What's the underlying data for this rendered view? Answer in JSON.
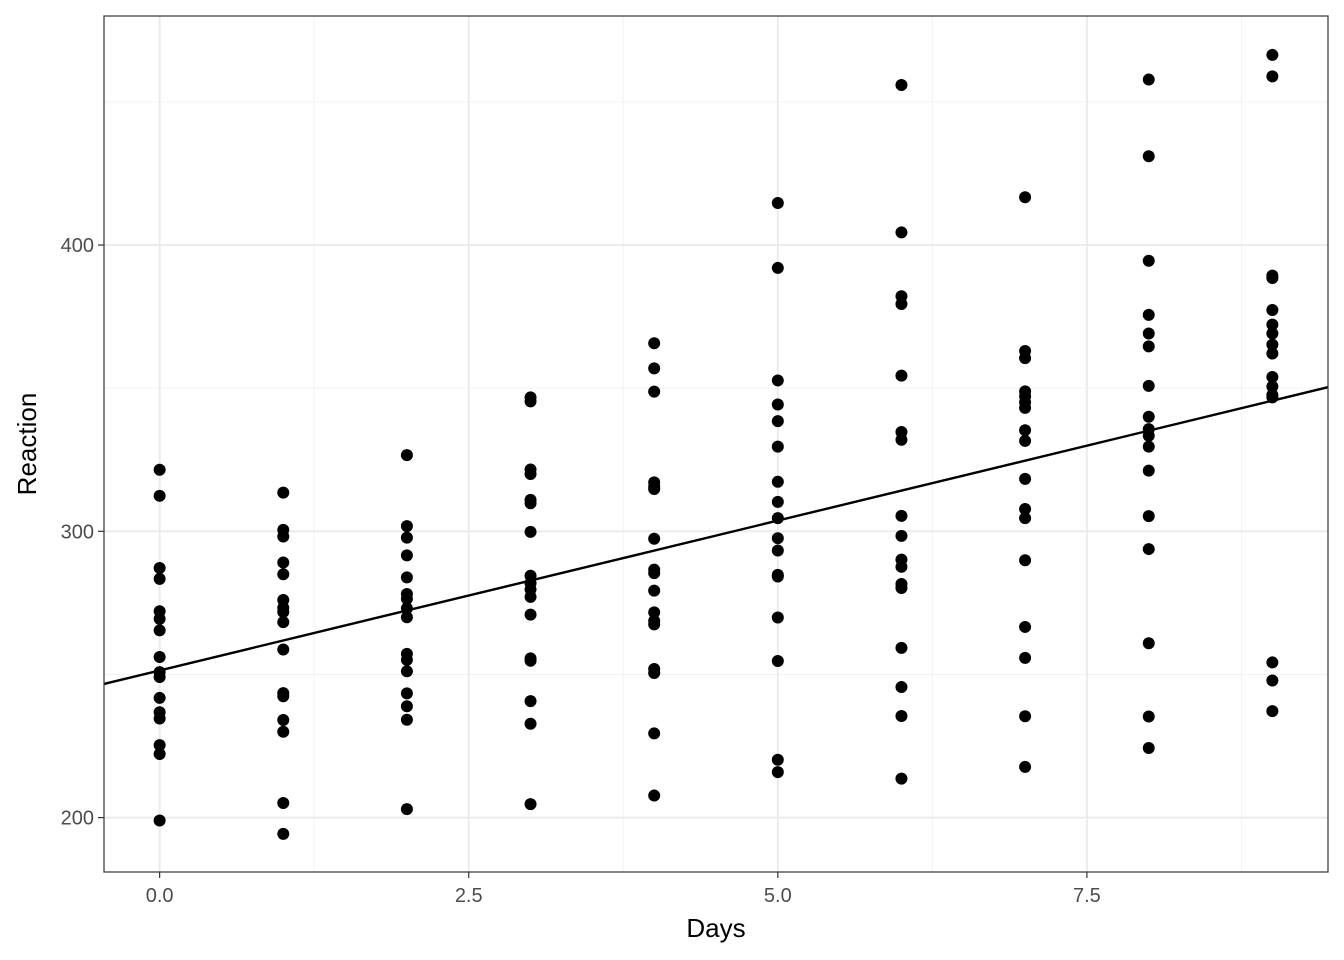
{
  "chart_data": {
    "type": "scatter",
    "title": "",
    "xlabel": "Days",
    "ylabel": "Reaction",
    "xlim": [
      -0.45,
      9.45
    ],
    "ylim": [
      181,
      480
    ],
    "x_ticks": [
      0.0,
      2.5,
      5.0,
      7.5
    ],
    "x_tick_labels": [
      "0.0",
      "2.5",
      "5.0",
      "7.5"
    ],
    "y_ticks": [
      200,
      300,
      400
    ],
    "y_tick_labels": [
      "200",
      "300",
      "400"
    ],
    "grid": true,
    "series": [
      {
        "points": [
          [
            0,
            321.5
          ],
          [
            0,
            312.4
          ],
          [
            0,
            287.2
          ],
          [
            0,
            283.4
          ],
          [
            0,
            272.1
          ],
          [
            0,
            269.4
          ],
          [
            0,
            265.4
          ],
          [
            0,
            256.1
          ],
          [
            0,
            250.8
          ],
          [
            0,
            249.1
          ],
          [
            0,
            241.8
          ],
          [
            0,
            236.8
          ],
          [
            0,
            234.6
          ],
          [
            0,
            225.3
          ],
          [
            0,
            222.2
          ],
          [
            0,
            199.0
          ],
          [
            1,
            313.5
          ],
          [
            1,
            300.5
          ],
          [
            1,
            298.2
          ],
          [
            1,
            289.1
          ],
          [
            1,
            285.0
          ],
          [
            1,
            276.0
          ],
          [
            1,
            273.3
          ],
          [
            1,
            271.8
          ],
          [
            1,
            268.3
          ],
          [
            1,
            258.7
          ],
          [
            1,
            243.5
          ],
          [
            1,
            242.4
          ],
          [
            1,
            234.1
          ],
          [
            1,
            230.0
          ],
          [
            1,
            205.1
          ],
          [
            1,
            194.3
          ],
          [
            2,
            326.6
          ],
          [
            2,
            301.8
          ],
          [
            2,
            297.8
          ],
          [
            2,
            291.6
          ],
          [
            2,
            283.9
          ],
          [
            2,
            278.1
          ],
          [
            2,
            276.4
          ],
          [
            2,
            273.1
          ],
          [
            2,
            270.0
          ],
          [
            2,
            257.2
          ],
          [
            2,
            255.1
          ],
          [
            2,
            251.1
          ],
          [
            2,
            243.4
          ],
          [
            2,
            238.9
          ],
          [
            2,
            234.2
          ],
          [
            2,
            202.98
          ],
          [
            3,
            346.8
          ],
          [
            3,
            345.4
          ],
          [
            3,
            321.6
          ],
          [
            3,
            320.0
          ],
          [
            3,
            311.0
          ],
          [
            3,
            309.8
          ],
          [
            3,
            299.8
          ],
          [
            3,
            284.5
          ],
          [
            3,
            281.9
          ],
          [
            3,
            279.7
          ],
          [
            3,
            277.1
          ],
          [
            3,
            270.9
          ],
          [
            3,
            255.6
          ],
          [
            3,
            254.8
          ],
          [
            3,
            240.7
          ],
          [
            3,
            232.8
          ],
          [
            3,
            204.7
          ],
          [
            4,
            365.7
          ],
          [
            4,
            356.9
          ],
          [
            4,
            348.8
          ],
          [
            4,
            317.1
          ],
          [
            4,
            315.6
          ],
          [
            4,
            314.8
          ],
          [
            4,
            297.4
          ],
          [
            4,
            286.6
          ],
          [
            4,
            285.4
          ],
          [
            4,
            279.3
          ],
          [
            4,
            271.7
          ],
          [
            4,
            268.7
          ],
          [
            4,
            267.5
          ],
          [
            4,
            251.9
          ],
          [
            4,
            250.5
          ],
          [
            4,
            229.4
          ],
          [
            4,
            207.7
          ],
          [
            5,
            414.7
          ],
          [
            5,
            392.0
          ],
          [
            5,
            352.7
          ],
          [
            5,
            344.3
          ],
          [
            5,
            338.5
          ],
          [
            5,
            329.6
          ],
          [
            5,
            317.3
          ],
          [
            5,
            310.3
          ],
          [
            5,
            304.6
          ],
          [
            5,
            297.6
          ],
          [
            5,
            293.3
          ],
          [
            5,
            284.8
          ],
          [
            5,
            284.2
          ],
          [
            5,
            269.9
          ],
          [
            5,
            254.7
          ],
          [
            5,
            220.2
          ],
          [
            5,
            215.9
          ],
          [
            6,
            455.9
          ],
          [
            6,
            404.4
          ],
          [
            6,
            382.1
          ],
          [
            6,
            379.4
          ],
          [
            6,
            354.4
          ],
          [
            6,
            334.7
          ],
          [
            6,
            332.0
          ],
          [
            6,
            305.4
          ],
          [
            6,
            298.4
          ],
          [
            6,
            290.1
          ],
          [
            6,
            287.6
          ],
          [
            6,
            281.6
          ],
          [
            6,
            280.2
          ],
          [
            6,
            259.3
          ],
          [
            6,
            245.6
          ],
          [
            6,
            235.5
          ],
          [
            6,
            213.6
          ],
          [
            7,
            416.7
          ],
          [
            7,
            363.0
          ],
          [
            7,
            360.5
          ],
          [
            7,
            348.9
          ],
          [
            7,
            347.2
          ],
          [
            7,
            345.1
          ],
          [
            7,
            343.1
          ],
          [
            7,
            335.3
          ],
          [
            7,
            331.6
          ],
          [
            7,
            318.3
          ],
          [
            7,
            307.8
          ],
          [
            7,
            304.6
          ],
          [
            7,
            289.9
          ],
          [
            7,
            266.6
          ],
          [
            7,
            255.8
          ],
          [
            7,
            235.4
          ],
          [
            7,
            217.7
          ],
          [
            8,
            457.8
          ],
          [
            8,
            431.0
          ],
          [
            8,
            394.5
          ],
          [
            8,
            375.6
          ],
          [
            8,
            369.1
          ],
          [
            8,
            364.6
          ],
          [
            8,
            350.8
          ],
          [
            8,
            340.0
          ],
          [
            8,
            335.7
          ],
          [
            8,
            333.4
          ],
          [
            8,
            329.6
          ],
          [
            8,
            321.2
          ],
          [
            8,
            305.3
          ],
          [
            8,
            293.8
          ],
          [
            8,
            260.9
          ],
          [
            8,
            235.3
          ],
          [
            8,
            224.3
          ],
          [
            9,
            466.4
          ],
          [
            9,
            458.9
          ],
          [
            9,
            389.3
          ],
          [
            9,
            388.5
          ],
          [
            9,
            377.3
          ],
          [
            9,
            372.2
          ],
          [
            9,
            369.1
          ],
          [
            9,
            365.2
          ],
          [
            9,
            362.1
          ],
          [
            9,
            353.9
          ],
          [
            9,
            350.6
          ],
          [
            9,
            347.6
          ],
          [
            9,
            346.8
          ],
          [
            9,
            254.2
          ],
          [
            9,
            247.9
          ],
          [
            9,
            237.2
          ]
        ]
      }
    ],
    "fit_line": {
      "intercept": 251.4,
      "slope": 10.47
    },
    "colors": {
      "points": "#000000",
      "line": "#000000",
      "grid_major": "#ebebeb",
      "grid_minor": "#f3f3f3",
      "panel_border": "#333333",
      "tick_text": "#4d4d4d"
    }
  }
}
